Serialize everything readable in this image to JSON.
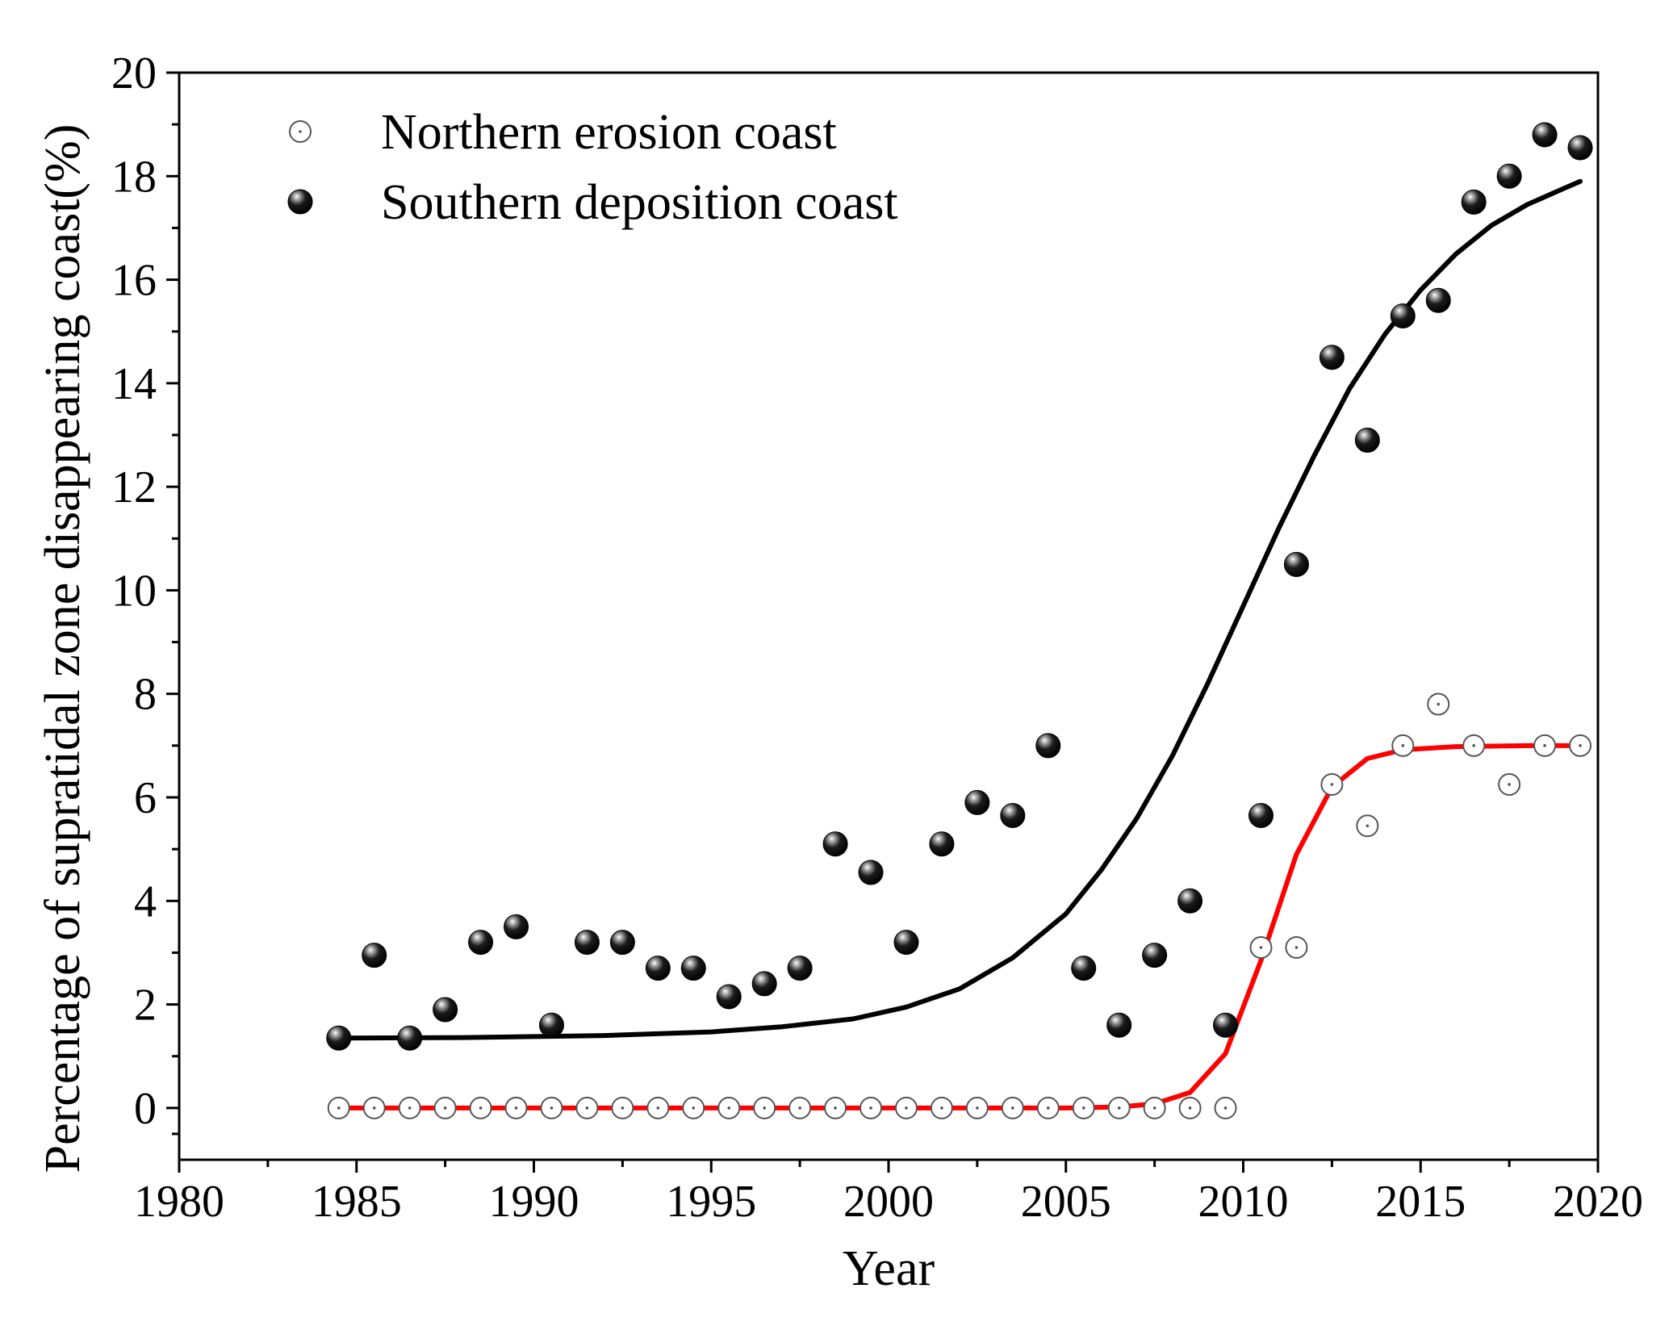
{
  "chart_data": {
    "type": "scatter",
    "title": "",
    "xlabel": "Year",
    "ylabel": "Percentage of supratidal zone disappearing coast(%)",
    "xlim": [
      1980,
      2020
    ],
    "ylim": [
      -1,
      20
    ],
    "xticks": [
      1980,
      1985,
      1990,
      1995,
      2000,
      2005,
      2010,
      2015,
      2020
    ],
    "yticks": [
      0,
      2,
      4,
      6,
      8,
      10,
      12,
      14,
      16,
      18,
      20
    ],
    "grid": false,
    "legend_position": "top-left",
    "series": [
      {
        "name": "Northern erosion coast",
        "marker": "open-circle-dot",
        "color": "#555555",
        "fit_color": "#ff0000",
        "points": [
          [
            1984.5,
            0
          ],
          [
            1985.5,
            0
          ],
          [
            1986.5,
            0
          ],
          [
            1987.5,
            0
          ],
          [
            1988.5,
            0
          ],
          [
            1989.5,
            0
          ],
          [
            1990.5,
            0
          ],
          [
            1991.5,
            0
          ],
          [
            1992.5,
            0
          ],
          [
            1993.5,
            0
          ],
          [
            1994.5,
            0
          ],
          [
            1995.5,
            0
          ],
          [
            1996.5,
            0
          ],
          [
            1997.5,
            0
          ],
          [
            1998.5,
            0
          ],
          [
            1999.5,
            0
          ],
          [
            2000.5,
            0
          ],
          [
            2001.5,
            0
          ],
          [
            2002.5,
            0
          ],
          [
            2003.5,
            0
          ],
          [
            2004.5,
            0
          ],
          [
            2005.5,
            0
          ],
          [
            2006.5,
            0
          ],
          [
            2007.5,
            0
          ],
          [
            2008.5,
            0
          ],
          [
            2009.5,
            0
          ],
          [
            2010.5,
            3.1
          ],
          [
            2011.5,
            3.1
          ],
          [
            2012.5,
            6.25
          ],
          [
            2013.5,
            5.45
          ],
          [
            2014.5,
            7.0
          ],
          [
            2015.5,
            7.8
          ],
          [
            2016.5,
            7.0
          ],
          [
            2017.5,
            6.25
          ],
          [
            2018.5,
            7.0
          ],
          [
            2019.5,
            7.0
          ]
        ],
        "fit": [
          [
            1984.5,
            0
          ],
          [
            1990,
            0
          ],
          [
            1995,
            0
          ],
          [
            2000,
            0
          ],
          [
            2005,
            0
          ],
          [
            2006.5,
            0.02
          ],
          [
            2007.5,
            0.08
          ],
          [
            2008.5,
            0.3
          ],
          [
            2009.5,
            1.05
          ],
          [
            2010.5,
            2.85
          ],
          [
            2011.5,
            4.9
          ],
          [
            2012.5,
            6.2
          ],
          [
            2013.5,
            6.75
          ],
          [
            2014.5,
            6.92
          ],
          [
            2016,
            6.98
          ],
          [
            2018,
            7.0
          ],
          [
            2019.5,
            7.0
          ]
        ]
      },
      {
        "name": "Southern deposition coast",
        "marker": "filled-sphere",
        "color": "#000000",
        "fit_color": "#000000",
        "points": [
          [
            1984.5,
            1.35
          ],
          [
            1985.5,
            2.95
          ],
          [
            1986.5,
            1.35
          ],
          [
            1987.5,
            1.9
          ],
          [
            1988.5,
            3.2
          ],
          [
            1989.5,
            3.5
          ],
          [
            1990.5,
            1.6
          ],
          [
            1991.5,
            3.2
          ],
          [
            1992.5,
            3.2
          ],
          [
            1993.5,
            2.7
          ],
          [
            1994.5,
            2.7
          ],
          [
            1995.5,
            2.15
          ],
          [
            1996.5,
            2.4
          ],
          [
            1997.5,
            2.7
          ],
          [
            1998.5,
            5.1
          ],
          [
            1999.5,
            4.55
          ],
          [
            2000.5,
            3.2
          ],
          [
            2001.5,
            5.1
          ],
          [
            2002.5,
            5.9
          ],
          [
            2003.5,
            5.65
          ],
          [
            2004.5,
            7.0
          ],
          [
            2005.5,
            2.7
          ],
          [
            2006.5,
            1.6
          ],
          [
            2007.5,
            2.95
          ],
          [
            2008.5,
            4.0
          ],
          [
            2009.5,
            1.6
          ],
          [
            2010.5,
            5.65
          ],
          [
            2011.5,
            10.5
          ],
          [
            2012.5,
            14.5
          ],
          [
            2013.5,
            12.9
          ],
          [
            2014.5,
            15.3
          ],
          [
            2015.5,
            15.6
          ],
          [
            2016.5,
            17.5
          ],
          [
            2017.5,
            18.0
          ],
          [
            2018.5,
            18.8
          ],
          [
            2019.5,
            18.55
          ]
        ],
        "fit": [
          [
            1984.5,
            1.35
          ],
          [
            1988,
            1.36
          ],
          [
            1992,
            1.4
          ],
          [
            1995,
            1.47
          ],
          [
            1997,
            1.57
          ],
          [
            1999,
            1.72
          ],
          [
            2000.5,
            1.95
          ],
          [
            2002,
            2.3
          ],
          [
            2003.5,
            2.9
          ],
          [
            2005,
            3.75
          ],
          [
            2006,
            4.6
          ],
          [
            2007,
            5.6
          ],
          [
            2008,
            6.8
          ],
          [
            2009,
            8.2
          ],
          [
            2010,
            9.7
          ],
          [
            2011,
            11.2
          ],
          [
            2012,
            12.6
          ],
          [
            2013,
            13.9
          ],
          [
            2014,
            14.95
          ],
          [
            2015,
            15.8
          ],
          [
            2016,
            16.5
          ],
          [
            2017,
            17.05
          ],
          [
            2018,
            17.45
          ],
          [
            2019,
            17.75
          ],
          [
            2019.5,
            17.9
          ]
        ]
      }
    ]
  }
}
